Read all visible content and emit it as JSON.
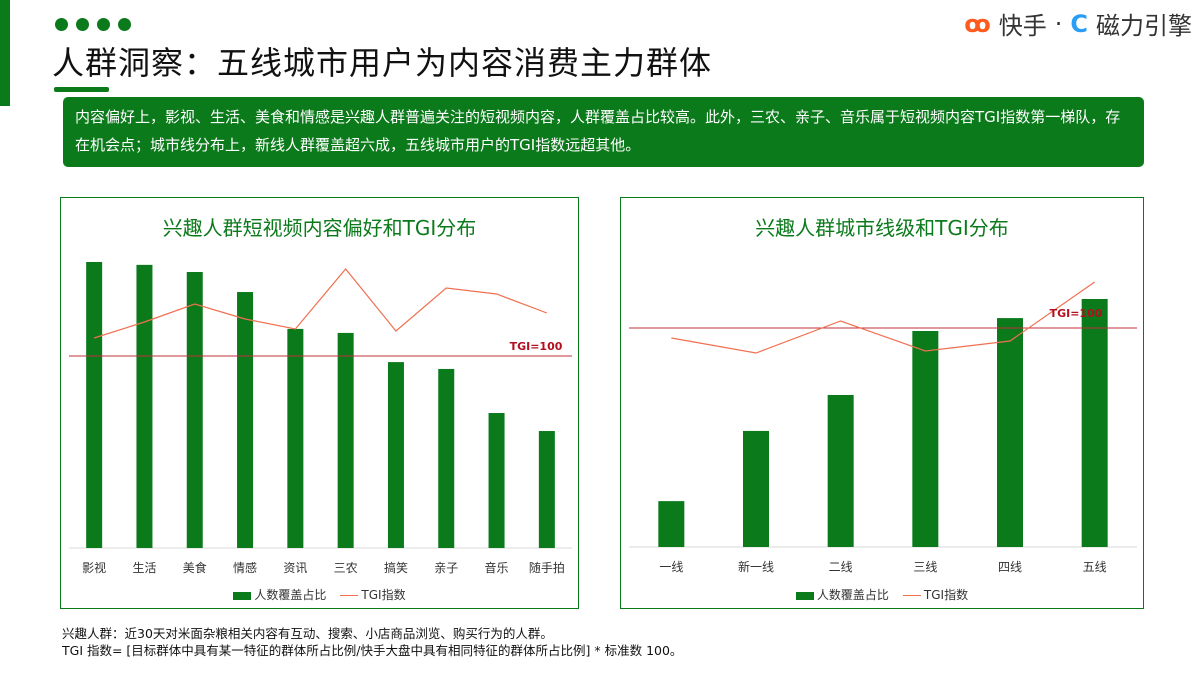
{
  "header": {
    "title": "人群洞察：五线城市用户为内容消费主力群体",
    "logo_kuaishou": "快手",
    "separator": "·",
    "logo_cili": "磁力引擎"
  },
  "summary": "内容偏好上，影视、生活、美食和情感是兴趣人群普遍关注的短视频内容，人群覆盖占比较高。此外，三农、亲子、音乐属于短视频内容TGI指数第一梯队，存在机会点；城市线分布上，新线人群覆盖超六成，五线城市用户的TGI指数远超其他。",
  "colors": {
    "brand": "#0b7a1b",
    "tgi_line": "#f07050",
    "ref_line": "#c0303a"
  },
  "chart_data": [
    {
      "type": "bar+line",
      "title": "兴趣人群短视频内容偏好和TGI分布",
      "categories": [
        "影视",
        "生活",
        "美食",
        "情感",
        "资讯",
        "三农",
        "搞笑",
        "亲子",
        "音乐",
        "随手拍"
      ],
      "series": [
        {
          "name": "人数覆盖占比",
          "type": "bar",
          "values": [
            100,
            99,
            96.5,
            89.5,
            76.6,
            75.2,
            65,
            62.6,
            47.2,
            40.9
          ]
        },
        {
          "name": "TGI指数",
          "type": "line",
          "values": [
            109,
            117,
            126,
            118.5,
            113.5,
            143.5,
            112.5,
            134,
            131,
            121.5
          ]
        }
      ],
      "reference_line": {
        "label": "TGI=100",
        "value": 100
      },
      "grid": false,
      "legend": "bottom"
    },
    {
      "type": "bar+line",
      "title": "兴趣人群城市线级和TGI分布",
      "categories": [
        "一线",
        "新一线",
        "二线",
        "三线",
        "四线",
        "五线"
      ],
      "series": [
        {
          "name": "人数覆盖占比",
          "type": "bar",
          "values": [
            18.5,
            46.8,
            61.3,
            87.1,
            92.3,
            100
          ]
        },
        {
          "name": "TGI指数",
          "type": "line",
          "values": [
            95,
            87.5,
            103.5,
            88.5,
            93.5,
            123
          ]
        }
      ],
      "reference_line": {
        "label": "TGI=100",
        "value": 100
      },
      "grid": false,
      "legend": "bottom"
    }
  ],
  "footnotes": [
    "兴趣人群：近30天对米面杂粮相关内容有互动、搜索、小店商品浏览、购买行为的人群。",
    "TGI 指数= [目标群体中具有某一特征的群体所占比例/快手大盘中具有相同特征的群体所占比例] * 标准数 100。"
  ]
}
